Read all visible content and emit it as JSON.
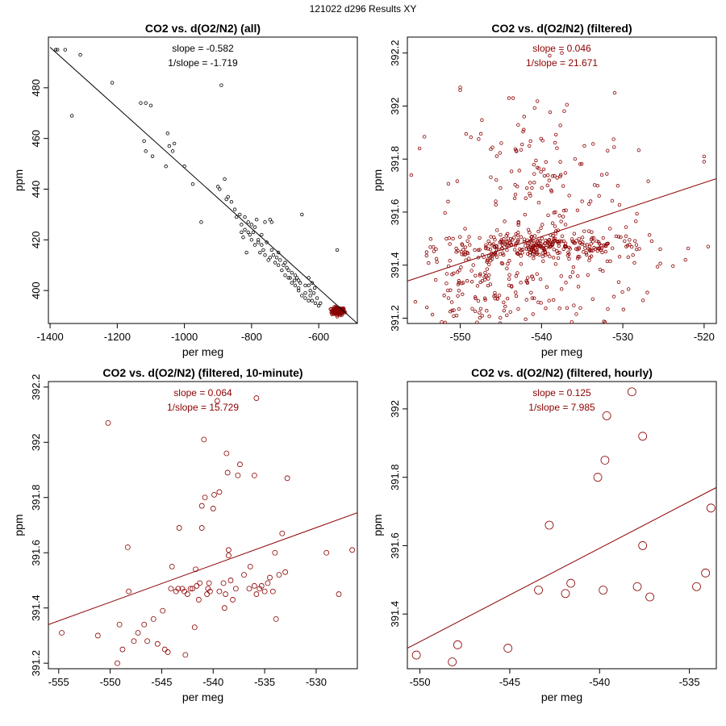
{
  "figure_title": "121022   d296   Results XY",
  "colors": {
    "black": "#000000",
    "red": "#8b0000"
  },
  "chart_data": [
    {
      "type": "scatter",
      "title": "CO2 vs. d(O2/N2) (all)",
      "xlabel": "per meg",
      "ylabel": "ppm",
      "xlim": [
        -1405,
        -485
      ],
      "ylim": [
        387,
        500
      ],
      "xticks": [
        -1400,
        -1200,
        -1000,
        -800,
        -600
      ],
      "yticks": [
        400,
        420,
        440,
        460,
        480
      ],
      "annotations": [
        "slope = -0.582",
        "1/slope = -1.719"
      ],
      "color": "#000000",
      "marker_size": "small",
      "fit_line": {
        "x": [
          -1400,
          -485
        ],
        "y": [
          496.0,
          387.0
        ]
      },
      "extra_clusters": [
        {
          "cx": -542,
          "cy": 391.8,
          "sx": 10,
          "sy": 0.8,
          "n": 140,
          "color": "#8b0000"
        }
      ],
      "points": [
        [
          -1383,
          495
        ],
        [
          -1378,
          495
        ],
        [
          -1355,
          495
        ],
        [
          -1310,
          493
        ],
        [
          -1335,
          469
        ],
        [
          -1215,
          482
        ],
        [
          -1130,
          474
        ],
        [
          -1115,
          474
        ],
        [
          -1100,
          473
        ],
        [
          -1120,
          459
        ],
        [
          -1115,
          455
        ],
        [
          -1095,
          453
        ],
        [
          -1050,
          462
        ],
        [
          -1045,
          457
        ],
        [
          -1030,
          458
        ],
        [
          -1035,
          455
        ],
        [
          -1055,
          449
        ],
        [
          -1000,
          449
        ],
        [
          -975,
          442
        ],
        [
          -950,
          427
        ],
        [
          -900,
          441
        ],
        [
          -895,
          440
        ],
        [
          -890,
          481
        ],
        [
          -880,
          444
        ],
        [
          -875,
          436
        ],
        [
          -860,
          435
        ],
        [
          -835,
          430
        ],
        [
          -830,
          426
        ],
        [
          -820,
          424
        ],
        [
          -810,
          423
        ],
        [
          -800,
          420
        ],
        [
          -790,
          418
        ],
        [
          -780,
          420
        ],
        [
          -775,
          415
        ],
        [
          -770,
          418
        ],
        [
          -760,
          414
        ],
        [
          -745,
          413
        ],
        [
          -740,
          416
        ],
        [
          -730,
          411
        ],
        [
          -720,
          410
        ],
        [
          -710,
          408
        ],
        [
          -700,
          406
        ],
        [
          -690,
          405
        ],
        [
          -680,
          403
        ],
        [
          -670,
          402
        ],
        [
          -665,
          405
        ],
        [
          -660,
          400
        ],
        [
          -650,
          398
        ],
        [
          -640,
          397
        ],
        [
          -630,
          396
        ],
        [
          -620,
          396
        ],
        [
          -610,
          395
        ],
        [
          -600,
          394
        ],
        [
          -815,
          415
        ],
        [
          -790,
          425
        ],
        [
          -760,
          427
        ],
        [
          -740,
          427
        ],
        [
          -700,
          411
        ],
        [
          -720,
          415
        ],
        [
          -650,
          430
        ],
        [
          -545,
          416
        ],
        [
          -745,
          428
        ],
        [
          -785,
          428
        ],
        [
          -805,
          422
        ],
        [
          -825,
          421
        ],
        [
          -680,
          407
        ],
        [
          -660,
          404
        ],
        [
          -640,
          402
        ],
        [
          -630,
          402
        ],
        [
          -615,
          399
        ],
        [
          -690,
          408
        ],
        [
          -705,
          410
        ],
        [
          -715,
          412
        ],
        [
          -735,
          414
        ],
        [
          -755,
          419
        ],
        [
          -770,
          422
        ],
        [
          -795,
          423
        ],
        [
          -810,
          427
        ],
        [
          -850,
          432
        ],
        [
          -870,
          437
        ],
        [
          -660,
          401
        ],
        [
          -625,
          398
        ],
        [
          -605,
          397
        ],
        [
          -595,
          395
        ],
        [
          -670,
          406
        ],
        [
          -630,
          405
        ],
        [
          -620,
          403
        ],
        [
          -612,
          401
        ],
        [
          -625,
          400
        ],
        [
          -640,
          399
        ],
        [
          -655,
          403
        ],
        [
          -672,
          404
        ],
        [
          -685,
          405
        ],
        [
          -695,
          409
        ],
        [
          -725,
          413
        ],
        [
          -750,
          412
        ],
        [
          -765,
          416
        ],
        [
          -780,
          419
        ],
        [
          -800,
          426
        ],
        [
          -820,
          429
        ],
        [
          -830,
          423
        ],
        [
          -845,
          429
        ]
      ]
    },
    {
      "type": "scatter",
      "title": "CO2 vs. d(O2/N2) (filtered)",
      "xlabel": "per meg",
      "ylabel": "ppm",
      "xlim": [
        -556.5,
        -518.5
      ],
      "ylim": [
        391.18,
        392.26
      ],
      "xticks": [
        -550,
        -540,
        -530,
        -520
      ],
      "yticks": [
        391.2,
        391.4,
        391.6,
        391.8,
        392.0,
        392.2
      ],
      "annotations": [
        "slope = 0.046",
        "1/slope = 21.671"
      ],
      "color": "#8b0000",
      "marker_size": "small",
      "fit_line": {
        "x": [
          -556.5,
          -518.5
        ],
        "y": [
          391.34,
          391.726
        ]
      },
      "clusters": [
        {
          "cx": -540,
          "cy": 391.47,
          "sx": 6.5,
          "sy": 0.025,
          "n": 300
        },
        {
          "cx": -547,
          "cy": 391.32,
          "sx": 4.5,
          "sy": 0.08,
          "n": 140
        },
        {
          "cx": -540,
          "cy": 391.7,
          "sx": 5.5,
          "sy": 0.17,
          "n": 140
        },
        {
          "cx": -538,
          "cy": 391.35,
          "sx": 6,
          "sy": 0.12,
          "n": 60
        }
      ],
      "points": [
        [
          -550,
          392.07
        ],
        [
          -550,
          392.06
        ],
        [
          -539,
          392.19
        ],
        [
          -537.5,
          392.2
        ],
        [
          -531,
          392.05
        ],
        [
          -520,
          391.81
        ],
        [
          -520,
          391.79
        ],
        [
          -519.5,
          391.47
        ],
        [
          -544,
          392.03
        ],
        [
          -543.5,
          392.03
        ],
        [
          -555,
          391.84
        ]
      ]
    },
    {
      "type": "scatter",
      "title": "CO2 vs. d(O2/N2) (filtered, 10-minute)",
      "xlabel": "per meg",
      "ylabel": "ppm",
      "xlim": [
        -556,
        -526
      ],
      "ylim": [
        391.18,
        392.22
      ],
      "xticks": [
        -555,
        -550,
        -545,
        -540,
        -535,
        -530
      ],
      "yticks": [
        391.2,
        391.4,
        391.6,
        391.8,
        392.0,
        392.2
      ],
      "annotations": [
        "slope = 0.064",
        "1/slope = 15.729"
      ],
      "color": "#8b0000",
      "marker_size": "medium",
      "fit_line": {
        "x": [
          -556,
          -526
        ],
        "y": [
          391.34,
          391.745
        ]
      },
      "points": [
        [
          -554.7,
          391.31
        ],
        [
          -551.2,
          391.3
        ],
        [
          -550.2,
          392.07
        ],
        [
          -549.3,
          391.2
        ],
        [
          -549.1,
          391.34
        ],
        [
          -548.8,
          391.25
        ],
        [
          -548.3,
          391.62
        ],
        [
          -548.2,
          391.46
        ],
        [
          -547.7,
          391.28
        ],
        [
          -547.3,
          391.31
        ],
        [
          -546.7,
          391.34
        ],
        [
          -546.4,
          391.28
        ],
        [
          -545.8,
          391.36
        ],
        [
          -545.4,
          391.27
        ],
        [
          -544.9,
          391.39
        ],
        [
          -544.7,
          391.25
        ],
        [
          -544.4,
          391.24
        ],
        [
          -544.1,
          391.47
        ],
        [
          -544.0,
          391.55
        ],
        [
          -543.3,
          391.69
        ],
        [
          -543.6,
          391.46
        ],
        [
          -543.4,
          391.47
        ],
        [
          -543.0,
          391.47
        ],
        [
          -542.8,
          391.46
        ],
        [
          -542.7,
          391.23
        ],
        [
          -542.5,
          391.45
        ],
        [
          -542.2,
          391.47
        ],
        [
          -542.0,
          391.47
        ],
        [
          -541.8,
          391.33
        ],
        [
          -541.7,
          391.54
        ],
        [
          -541.6,
          391.48
        ],
        [
          -541.4,
          391.43
        ],
        [
          -541.3,
          391.49
        ],
        [
          -541.1,
          391.69
        ],
        [
          -541.1,
          391.77
        ],
        [
          -540.9,
          392.01
        ],
        [
          -540.8,
          391.8
        ],
        [
          -540.6,
          391.45
        ],
        [
          -540.5,
          391.47
        ],
        [
          -540.4,
          391.49
        ],
        [
          -540.3,
          391.46
        ],
        [
          -540.0,
          391.76
        ],
        [
          -539.9,
          391.81
        ],
        [
          -539.6,
          392.15
        ],
        [
          -539.4,
          391.82
        ],
        [
          -539.4,
          391.46
        ],
        [
          -539.0,
          391.49
        ],
        [
          -538.8,
          391.45
        ],
        [
          -538.7,
          391.96
        ],
        [
          -538.6,
          391.89
        ],
        [
          -538.5,
          391.61
        ],
        [
          -538.5,
          391.59
        ],
        [
          -538.3,
          391.5
        ],
        [
          -538.1,
          391.43
        ],
        [
          -537.8,
          391.47
        ],
        [
          -537.6,
          391.88
        ],
        [
          -537.4,
          391.92
        ],
        [
          -537.0,
          391.52
        ],
        [
          -536.4,
          391.55
        ],
        [
          -536.0,
          391.48
        ],
        [
          -535.8,
          391.45
        ],
        [
          -535.5,
          391.47
        ],
        [
          -535.3,
          391.48
        ],
        [
          -535.0,
          391.46
        ],
        [
          -534.7,
          391.49
        ],
        [
          -534.5,
          391.51
        ],
        [
          -534.2,
          391.46
        ],
        [
          -534.0,
          391.6
        ],
        [
          -533.9,
          391.36
        ],
        [
          -533.6,
          391.52
        ],
        [
          -533.3,
          391.67
        ],
        [
          -533.0,
          391.53
        ],
        [
          -532.8,
          391.87
        ],
        [
          -535.8,
          392.16
        ],
        [
          -529.0,
          391.6
        ],
        [
          -527.8,
          391.45
        ],
        [
          -526.5,
          391.61
        ],
        [
          -536.0,
          391.88
        ],
        [
          -538.9,
          391.4
        ],
        [
          -536.5,
          391.47
        ]
      ]
    },
    {
      "type": "scatter",
      "title": "CO2 vs. d(O2/N2) (filtered, hourly)",
      "xlabel": "per meg",
      "ylabel": "ppm",
      "xlim": [
        -550.7,
        -533.5
      ],
      "ylim": [
        391.24,
        392.08
      ],
      "xticks": [
        -550,
        -545,
        -540,
        -535
      ],
      "yticks": [
        391.4,
        391.6,
        391.8,
        392.0
      ],
      "annotations": [
        "slope = 0.125",
        "1/slope = 7.985"
      ],
      "color": "#8b0000",
      "marker_size": "large",
      "fit_line": {
        "x": [
          -550.7,
          -533.5
        ],
        "y": [
          391.3,
          391.77
        ]
      },
      "points": [
        [
          -550.2,
          391.28
        ],
        [
          -548.2,
          391.26
        ],
        [
          -547.9,
          391.31
        ],
        [
          -545.1,
          391.3
        ],
        [
          -543.4,
          391.47
        ],
        [
          -542.8,
          391.66
        ],
        [
          -541.9,
          391.46
        ],
        [
          -541.6,
          391.49
        ],
        [
          -540.1,
          391.8
        ],
        [
          -539.8,
          391.47
        ],
        [
          -539.7,
          391.85
        ],
        [
          -539.6,
          391.98
        ],
        [
          -538.2,
          392.05
        ],
        [
          -537.9,
          391.48
        ],
        [
          -537.6,
          391.92
        ],
        [
          -537.6,
          391.6
        ],
        [
          -537.2,
          391.45
        ],
        [
          -534.6,
          391.48
        ],
        [
          -534.1,
          391.52
        ],
        [
          -533.8,
          391.71
        ]
      ]
    }
  ]
}
